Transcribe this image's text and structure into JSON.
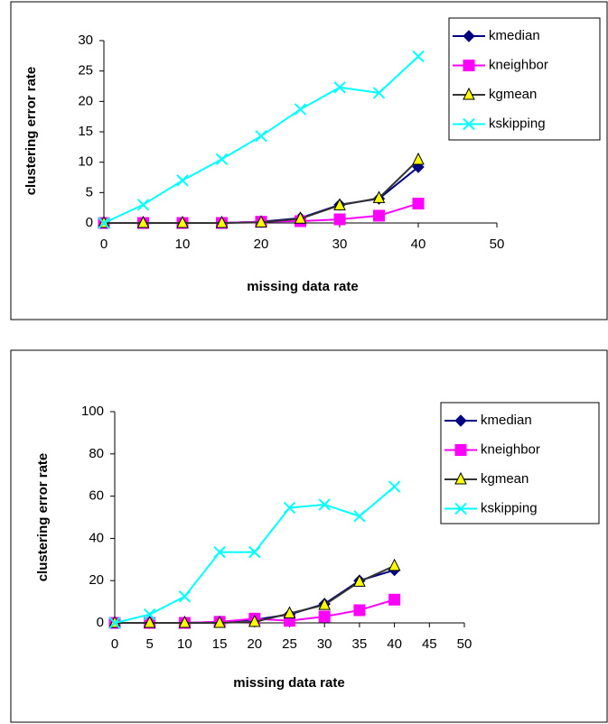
{
  "chart_data": [
    {
      "type": "line",
      "xlabel": "missing data rate",
      "ylabel": "clustering error rate",
      "x": [
        0,
        5,
        10,
        15,
        20,
        25,
        30,
        35,
        40
      ],
      "xlim": [
        0,
        50
      ],
      "xticks": [
        0,
        10,
        20,
        30,
        40,
        50
      ],
      "ylim": [
        0,
        30
      ],
      "yticks": [
        0,
        5,
        10,
        15,
        20,
        25,
        30
      ],
      "legend": "upper right",
      "series": [
        {
          "name": "kmedian",
          "color": "#000080",
          "marker": "diamond",
          "marker_fill": "#000080",
          "values": [
            0,
            0,
            0,
            0,
            0.2,
            0.8,
            3,
            4,
            9.2
          ]
        },
        {
          "name": "kneighbor",
          "color": "#ff00ff",
          "marker": "square",
          "marker_fill": "#ff00ff",
          "values": [
            0,
            0,
            0,
            0,
            0.2,
            0.3,
            0.6,
            1.2,
            3.2
          ]
        },
        {
          "name": "kgmean",
          "color": "#333333",
          "marker": "triangle",
          "marker_fill": "#ffff00",
          "values": [
            0,
            0,
            0,
            0,
            0.1,
            0.7,
            2.9,
            4.1,
            10.4
          ]
        },
        {
          "name": "kskipping",
          "color": "#00ffff",
          "marker": "x",
          "marker_fill": "#00ffff",
          "values": [
            0,
            3,
            7,
            10.5,
            14.3,
            18.7,
            22.3,
            21.4,
            27.4
          ]
        }
      ]
    },
    {
      "type": "line",
      "xlabel": "missing data rate",
      "ylabel": "clustering error rate",
      "x": [
        0,
        5,
        10,
        15,
        20,
        25,
        30,
        35,
        40
      ],
      "xlim": [
        0,
        50
      ],
      "xticks": [
        0,
        5,
        10,
        15,
        20,
        25,
        30,
        35,
        40,
        45,
        50
      ],
      "ylim": [
        0,
        100
      ],
      "yticks": [
        0,
        20,
        40,
        60,
        80,
        100
      ],
      "legend": "upper right",
      "series": [
        {
          "name": "kmedian",
          "color": "#000080",
          "marker": "diamond",
          "marker_fill": "#000080",
          "values": [
            0,
            0,
            0,
            0.5,
            1.5,
            4,
            9,
            20,
            25
          ]
        },
        {
          "name": "kneighbor",
          "color": "#ff00ff",
          "marker": "square",
          "marker_fill": "#ff00ff",
          "values": [
            0,
            0,
            0,
            0.5,
            2,
            1,
            3,
            6,
            11
          ]
        },
        {
          "name": "kgmean",
          "color": "#333333",
          "marker": "triangle",
          "marker_fill": "#ffff00",
          "values": [
            0,
            0,
            0,
            0,
            0.5,
            4.5,
            8.5,
            19.5,
            27
          ]
        },
        {
          "name": "kskipping",
          "color": "#00ffff",
          "marker": "x",
          "marker_fill": "#00ffff",
          "values": [
            0,
            4,
            12.5,
            33.5,
            33.5,
            54.5,
            56,
            50.5,
            64.5
          ]
        }
      ]
    }
  ]
}
